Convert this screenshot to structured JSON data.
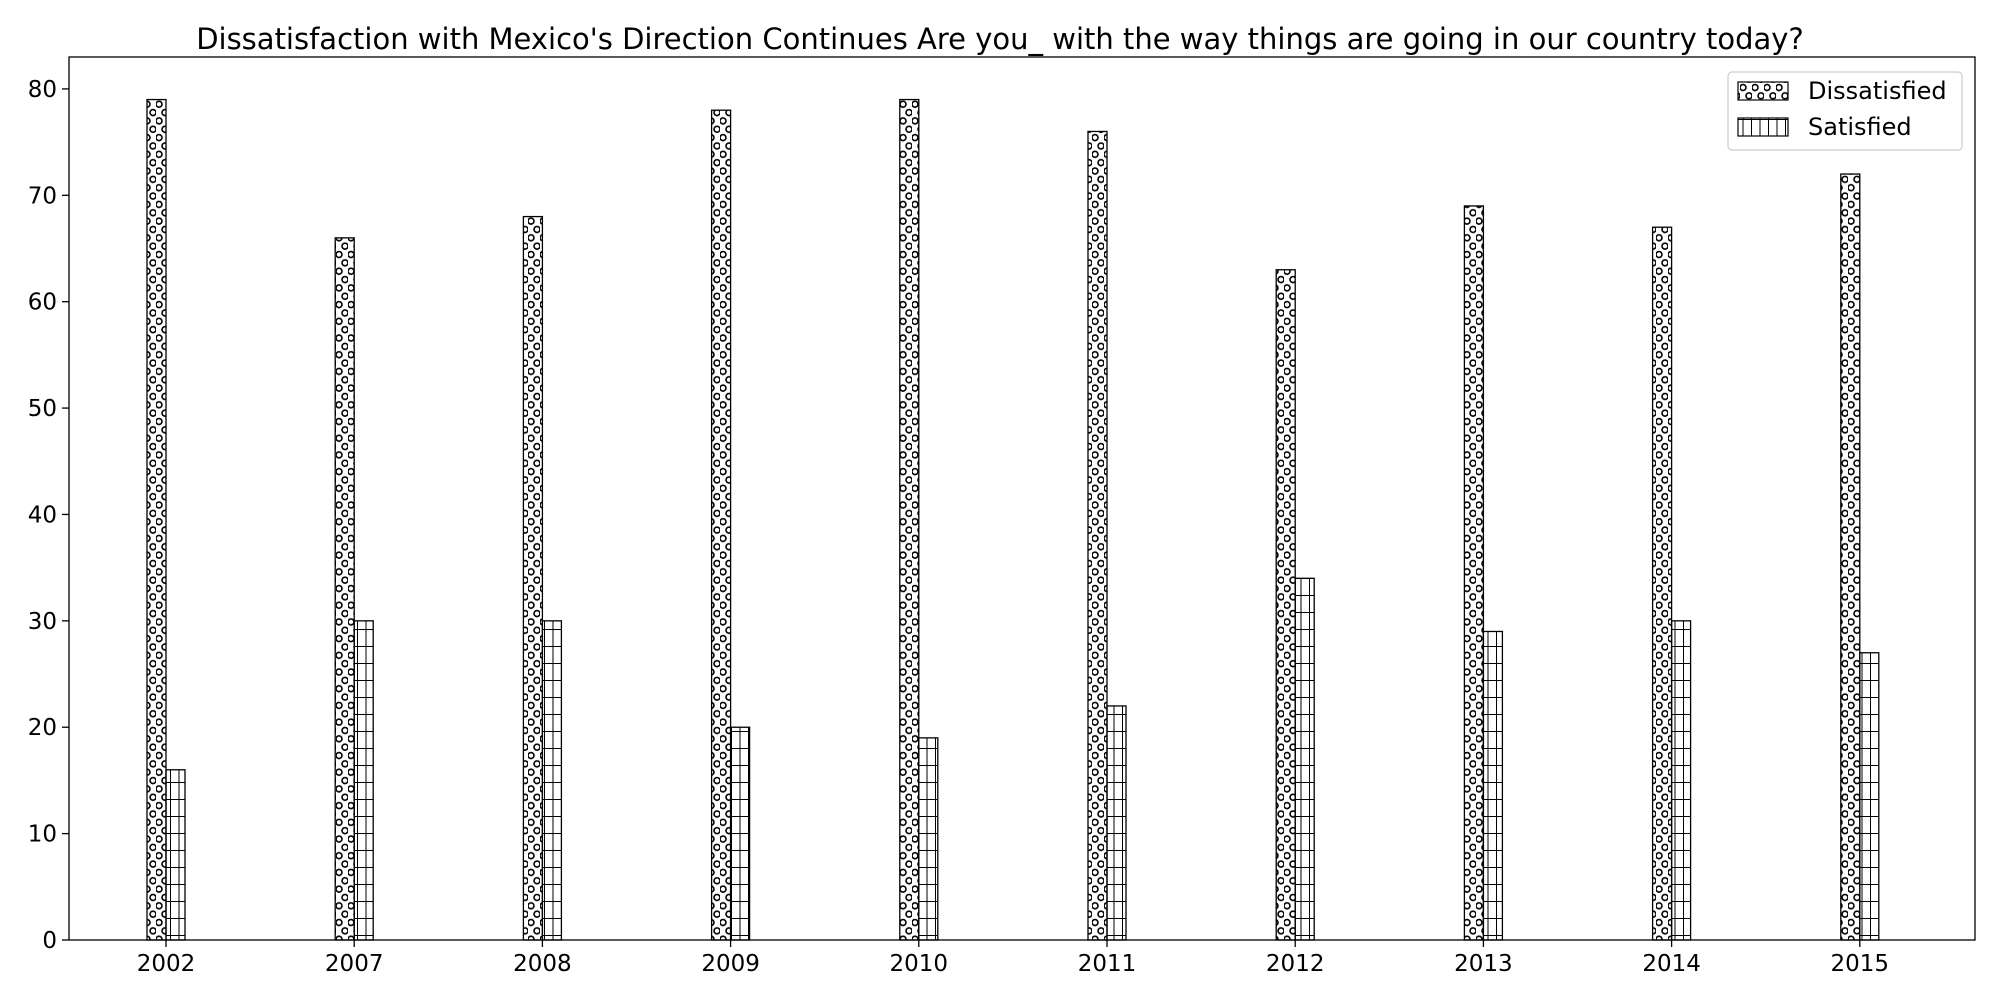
{
  "chart_data": {
    "type": "bar",
    "title": "Dissatisfaction with Mexico's Direction Continues Are you_ with the way things are going in our country today?",
    "xlabel": "",
    "ylabel": "",
    "categories": [
      "2002",
      "2007",
      "2008",
      "2009",
      "2010",
      "2011",
      "2012",
      "2013",
      "2014",
      "2015"
    ],
    "series": [
      {
        "name": "Dissatisfied",
        "pattern": "circles",
        "values": [
          79,
          66,
          68,
          78,
          79,
          76,
          63,
          69,
          67,
          72
        ]
      },
      {
        "name": "Satisfied",
        "pattern": "grid",
        "values": [
          16,
          30,
          30,
          20,
          19,
          22,
          34,
          29,
          30,
          27
        ]
      }
    ],
    "ylim": [
      0,
      83
    ],
    "yticks": [
      0,
      10,
      20,
      30,
      40,
      50,
      60,
      70,
      80
    ],
    "grid": false,
    "legend_position": "top-right",
    "colors": {
      "bar_fill": "#ffffff",
      "bar_edge": "#000000",
      "axis": "#000000"
    }
  }
}
